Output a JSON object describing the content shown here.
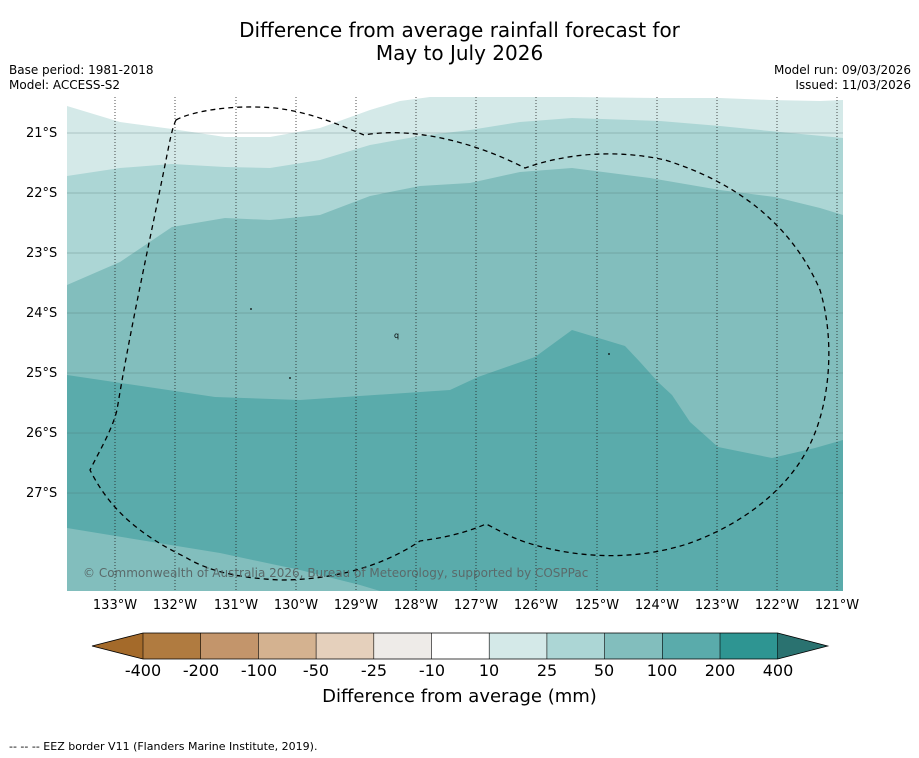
{
  "title": {
    "line1": "Difference from average rainfall forecast for",
    "line2": "May to July 2026"
  },
  "meta_left": {
    "base_period": "Base period: 1981-2018",
    "model": "Model: ACCESS-S2"
  },
  "meta_right": {
    "model_run": "Model run: 09/03/2026",
    "issued": "Issued: 11/03/2026"
  },
  "map": {
    "lat_labels": [
      "21°S",
      "22°S",
      "23°S",
      "24°S",
      "25°S",
      "26°S",
      "27°S"
    ],
    "lon_labels": [
      "133°W",
      "132°W",
      "131°W",
      "130°W",
      "129°W",
      "128°W",
      "127°W",
      "126°W",
      "125°W",
      "124°W",
      "123°W",
      "122°W",
      "121°W"
    ],
    "copyright": "© Commonwealth of Australia 2026, Bureau of Meteorology, supported by COSPPac",
    "zone_colors": {
      "10-25": "#d4e9e8",
      "25-50": "#acd6d5",
      "50-100": "#82bebd",
      "100-200": "#5aabab",
      "200-400": "#2e9592"
    },
    "eez_border_color": "#000000"
  },
  "colorbar": {
    "labels": [
      "-400",
      "-200",
      "-100",
      "-50",
      "-25",
      "-10",
      "10",
      "25",
      "50",
      "100",
      "200",
      "400"
    ],
    "colors": [
      "#a46a2a",
      "#b07b40",
      "#c3956b",
      "#d4b290",
      "#e5d0bc",
      "#eeebe8",
      "#ffffff",
      "#d4e9e8",
      "#acd6d5",
      "#82bebd",
      "#5aabab",
      "#2e9592",
      "#2a7270"
    ],
    "title": "Difference from average (mm)"
  },
  "footnote": "--  --  -- EEZ border V11 (Flanders Marine Institute, 2019)."
}
